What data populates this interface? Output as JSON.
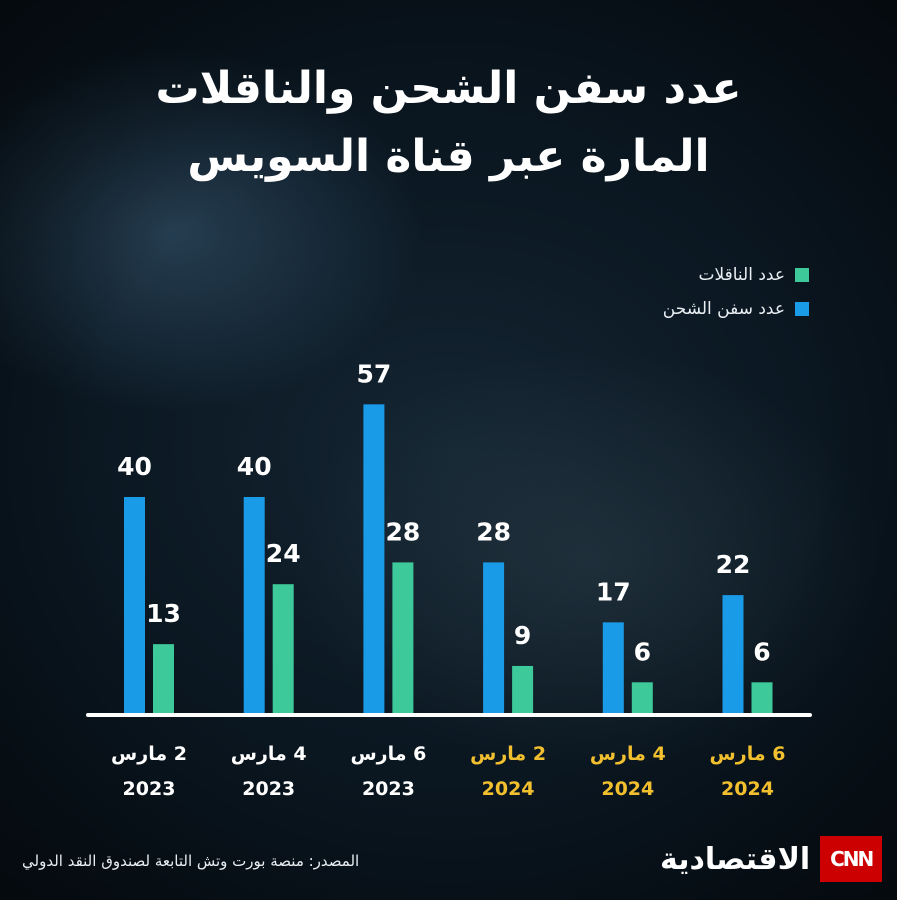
{
  "title": {
    "line1": "عدد سفن الشحن والناقلات",
    "line2": "المارة عبر قناة السويس"
  },
  "source": "المصدر: منصة بورت وتش التابعة لصندوق النقد الدولي",
  "brand": {
    "name": "الاقتصادية",
    "logo": "CNN"
  },
  "chart_data": {
    "type": "bar",
    "categories": [
      {
        "label": "2 مارس",
        "year": "2023"
      },
      {
        "label": "4 مارس",
        "year": "2023"
      },
      {
        "label": "6 مارس",
        "year": "2023"
      },
      {
        "label": "2 مارس",
        "year": "2024"
      },
      {
        "label": "4 مارس",
        "year": "2024"
      },
      {
        "label": "6 مارس",
        "year": "2024"
      }
    ],
    "series": [
      {
        "name": "عدد سفن الشحن",
        "color": "#1a9be8",
        "values": [
          40,
          40,
          57,
          28,
          17,
          22
        ]
      },
      {
        "name": "عدد الناقلات",
        "color": "#3ec99a",
        "values": [
          13,
          24,
          28,
          9,
          6,
          6
        ]
      }
    ],
    "ylim": [
      0,
      60
    ],
    "grid": false,
    "legend": "top-right",
    "label_colors": {
      "2023": "#ffffff",
      "2024": "#f2c02e"
    }
  }
}
